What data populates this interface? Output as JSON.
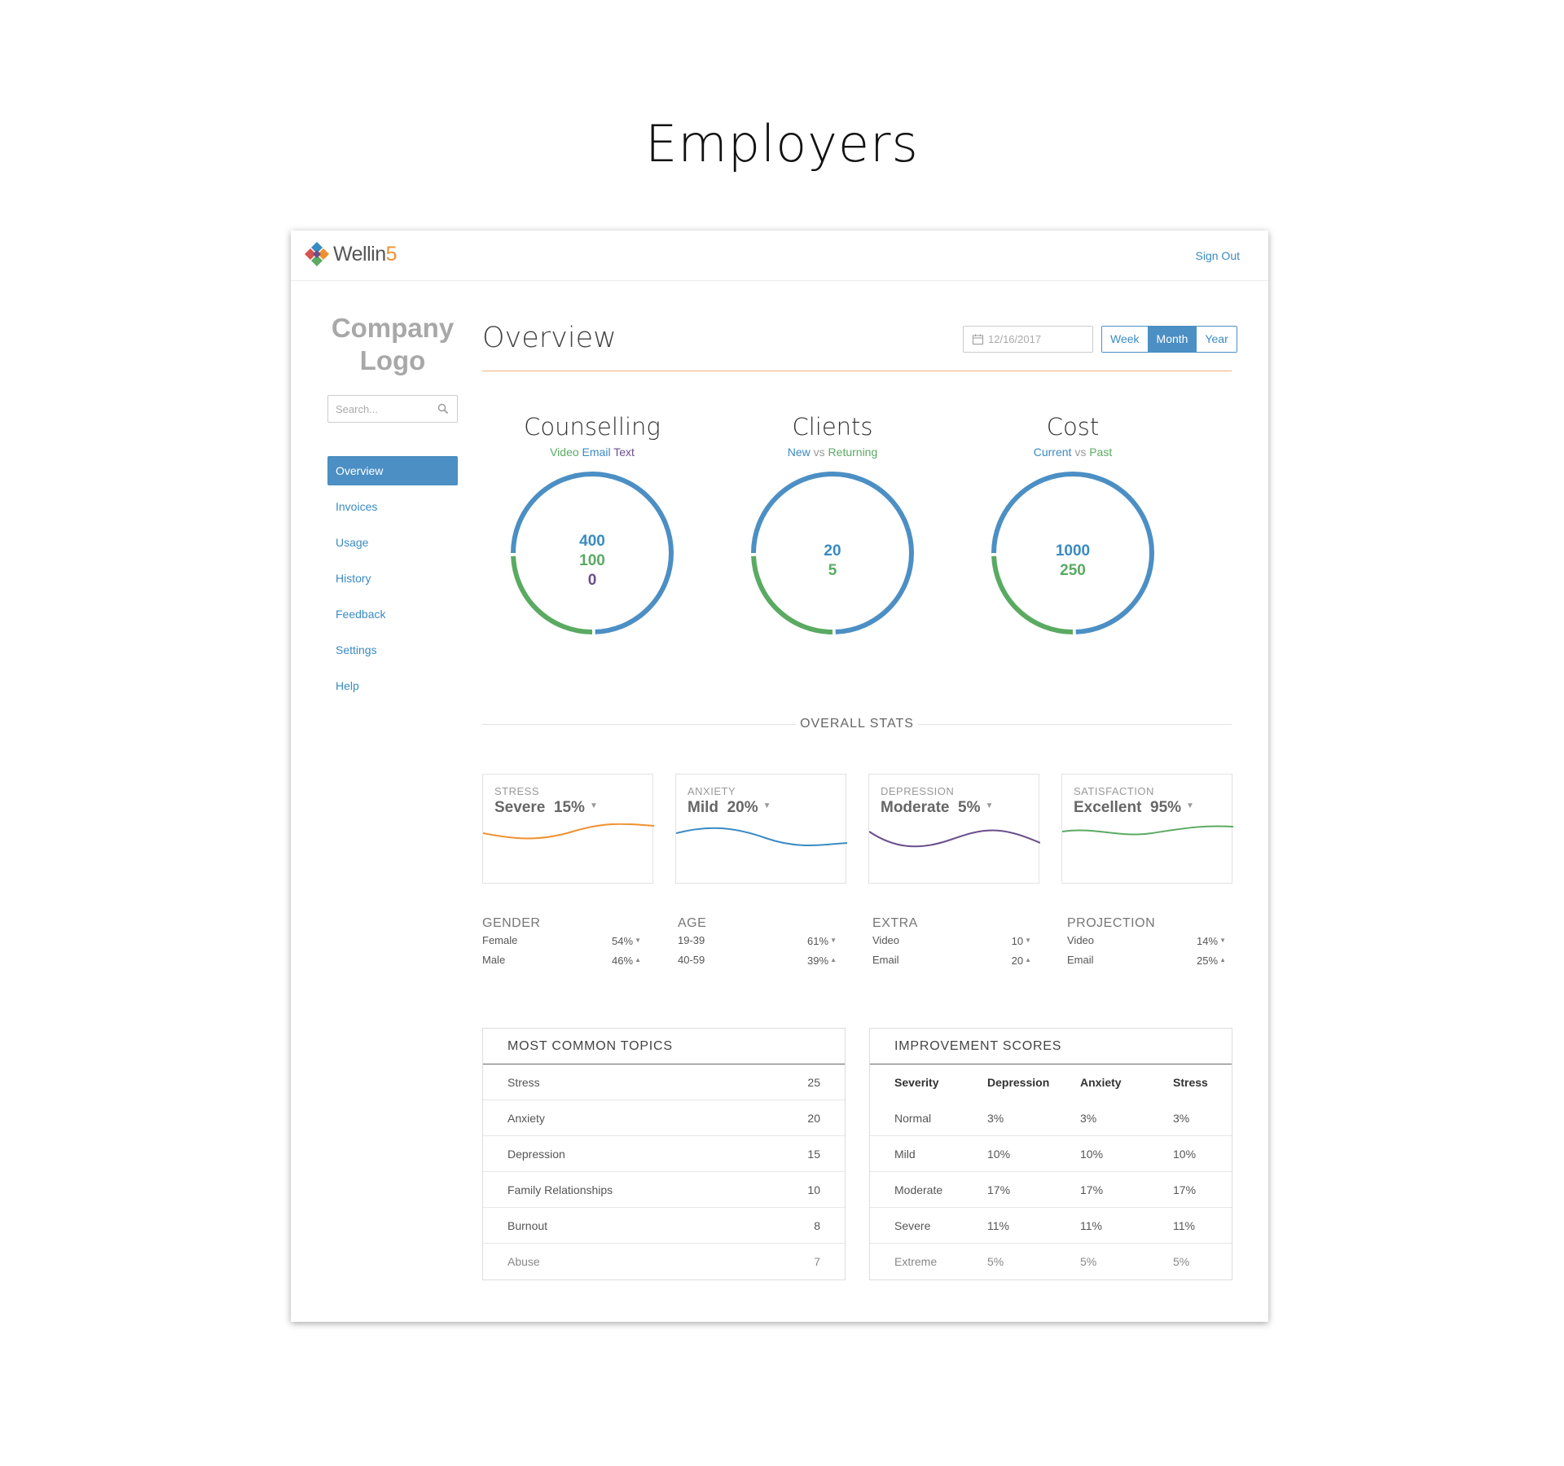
{
  "page": {
    "heading": "Employers"
  },
  "topbar": {
    "brand_main": "Wellin",
    "brand_accent": "5",
    "sign_out": "Sign Out"
  },
  "sidebar": {
    "company_logo_line1": "Company",
    "company_logo_line2": "Logo",
    "search_placeholder": "Search...",
    "items": [
      {
        "label": "Overview",
        "active": true
      },
      {
        "label": "Invoices"
      },
      {
        "label": "Usage"
      },
      {
        "label": "History"
      },
      {
        "label": "Feedback"
      },
      {
        "label": "Settings"
      },
      {
        "label": "Help"
      }
    ]
  },
  "header": {
    "title": "Overview",
    "date": "12/16/2017",
    "ranges": [
      "Week",
      "Month",
      "Year"
    ],
    "active_range": "Month"
  },
  "donuts": [
    {
      "title": "Counselling",
      "sub": [
        "Video",
        "Email",
        "Text"
      ],
      "values": [
        "400",
        "100",
        "0"
      ],
      "green_fraction": 0.25
    },
    {
      "title": "Clients",
      "sub": [
        "New",
        "vs",
        "Returning"
      ],
      "values": [
        "20",
        "5"
      ],
      "green_fraction": 0.25
    },
    {
      "title": "Cost",
      "sub": [
        "Current",
        "vs",
        "Past"
      ],
      "values": [
        "1000",
        "250"
      ],
      "green_fraction": 0.25
    }
  ],
  "overall_stats_label": "OVERALL STATS",
  "stat_cards": [
    {
      "caption": "STRESS",
      "level": "Severe",
      "percent": "15%",
      "color": "#f0912f"
    },
    {
      "caption": "ANXIETY",
      "level": "Mild",
      "percent": "20%",
      "color": "#3a8bc3"
    },
    {
      "caption": "DEPRESSION",
      "level": "Moderate",
      "percent": "5%",
      "color": "#6b4e8c"
    },
    {
      "caption": "SATISFACTION",
      "level": "Excellent",
      "percent": "95%",
      "color": "#5aaa62"
    }
  ],
  "mini_stats": [
    {
      "head": "GENDER",
      "rows": [
        {
          "label": "Female",
          "value": "54%",
          "trend": "down"
        },
        {
          "label": "Male",
          "value": "46%",
          "trend": "up"
        }
      ]
    },
    {
      "head": "AGE",
      "rows": [
        {
          "label": "19-39",
          "value": "61%",
          "trend": "down"
        },
        {
          "label": "40-59",
          "value": "39%",
          "trend": "up"
        }
      ]
    },
    {
      "head": "EXTRA",
      "rows": [
        {
          "label": "Video",
          "value": "10",
          "trend": "down"
        },
        {
          "label": "Email",
          "value": "20",
          "trend": "up"
        }
      ]
    },
    {
      "head": "PROJECTION",
      "rows": [
        {
          "label": "Video",
          "value": "14%",
          "trend": "down"
        },
        {
          "label": "Email",
          "value": "25%",
          "trend": "up"
        }
      ]
    }
  ],
  "topics": {
    "title": "MOST COMMON TOPICS",
    "rows": [
      {
        "label": "Stress",
        "count": "25"
      },
      {
        "label": "Anxiety",
        "count": "20"
      },
      {
        "label": "Depression",
        "count": "15"
      },
      {
        "label": "Family Relationships",
        "count": "10"
      },
      {
        "label": "Burnout",
        "count": "8"
      },
      {
        "label": "Abuse",
        "count": "7"
      }
    ]
  },
  "improvement": {
    "title": "IMPROVEMENT SCORES",
    "columns": [
      "Severity",
      "Depression",
      "Anxiety",
      "Stress"
    ],
    "rows": [
      [
        "Normal",
        "3%",
        "3%",
        "3%"
      ],
      [
        "Mild",
        "10%",
        "10%",
        "10%"
      ],
      [
        "Moderate",
        "17%",
        "17%",
        "17%"
      ],
      [
        "Severe",
        "11%",
        "11%",
        "11%"
      ],
      [
        "Extreme",
        "5%",
        "5%",
        "5%"
      ]
    ]
  }
}
